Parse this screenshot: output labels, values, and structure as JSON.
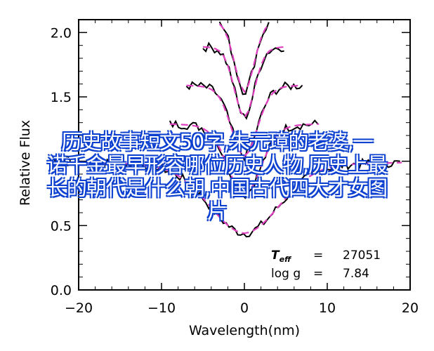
{
  "chart_data": {
    "type": "line",
    "title": "",
    "xlabel": "Wavelength(nm)",
    "ylabel": "Relative Flux",
    "xlim": [
      -20,
      20
    ],
    "ylim": [
      0.0,
      2.1
    ],
    "xticks": [
      -20,
      -10,
      0,
      10,
      20
    ],
    "yticks": [
      0.0,
      0.5,
      1.0,
      1.5,
      2.0
    ],
    "xtick_labels": [
      "−20",
      "−10",
      "0",
      "10",
      "20"
    ],
    "ytick_labels": [
      "0.0",
      "0.5",
      "1.0",
      "1.5",
      "2.0"
    ],
    "grid": false,
    "series": [
      {
        "style": "observed",
        "color": "#000000",
        "groups": [
          {
            "offset": 0.0,
            "half_width": 19
          },
          {
            "offset": 0.3,
            "half_width": 9
          },
          {
            "offset": 0.6,
            "half_width": 7
          },
          {
            "offset": 0.9,
            "half_width": 5
          },
          {
            "offset": 1.1,
            "half_width": 3
          }
        ]
      },
      {
        "style": "model",
        "color": "#e040c0",
        "groups": [
          {
            "offset": 0.0,
            "half_width": 19
          },
          {
            "offset": 0.3,
            "half_width": 9
          },
          {
            "offset": 0.6,
            "half_width": 7
          },
          {
            "offset": 0.9,
            "half_width": 5
          },
          {
            "offset": 1.1,
            "half_width": 3
          }
        ]
      }
    ],
    "annotations": [
      {
        "label": "T",
        "sub": "eff",
        "eq": "=",
        "value": "27051"
      },
      {
        "label": "log g",
        "eq": "=",
        "value": "7.84"
      }
    ]
  },
  "overlay": {
    "line1": "历史故事短文50字,朱元璋的老婆,一",
    "line2": "诺千金最早形容哪位历史人物,历史上最",
    "line3": "长的朝代是什么朝,中国古代四大才女图",
    "line4": "片"
  }
}
